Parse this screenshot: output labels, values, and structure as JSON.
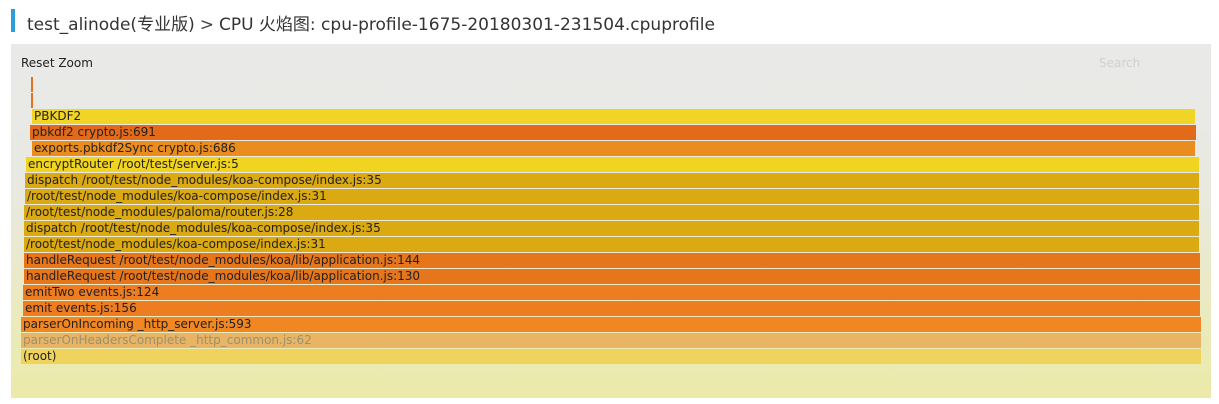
{
  "header": {
    "app_link": "test_alinode(专业版)",
    "separator": ">",
    "page_title": "CPU 火焰图: cpu-profile-1675-20180301-231504.cpuprofile"
  },
  "toolbar": {
    "reset_zoom_label": "Reset Zoom",
    "search_placeholder": "Search"
  },
  "colors": {
    "accent": "#2c9fd9"
  },
  "flame": {
    "frames": [
      {
        "label": "",
        "color": "#e8701e"
      },
      {
        "label": "",
        "color": "#e8701e"
      },
      {
        "label": "PBKDF2",
        "color": "#f1d526"
      },
      {
        "label": "pbkdf2 crypto.js:691",
        "color": "#e36a18"
      },
      {
        "label": "exports.pbkdf2Sync crypto.js:686",
        "color": "#eb8d1e"
      },
      {
        "label": "encryptRouter /root/test/server.js:5",
        "color": "#f1d41f"
      },
      {
        "label": "dispatch /root/test/node_modules/koa-compose/index.js:35",
        "color": "#dba911"
      },
      {
        "label": "/root/test/node_modules/koa-compose/index.js:31",
        "color": "#dba911"
      },
      {
        "label": "/root/test/node_modules/paloma/router.js:28",
        "color": "#dba911"
      },
      {
        "label": "dispatch /root/test/node_modules/koa-compose/index.js:35",
        "color": "#dba911"
      },
      {
        "label": "/root/test/node_modules/koa-compose/index.js:31",
        "color": "#dba911"
      },
      {
        "label": "handleRequest /root/test/node_modules/koa/lib/application.js:144",
        "color": "#e5761c"
      },
      {
        "label": "handleRequest /root/test/node_modules/koa/lib/application.js:130",
        "color": "#e5761c"
      },
      {
        "label": "emitTwo events.js:124",
        "color": "#ee7d21"
      },
      {
        "label": "emit events.js:156",
        "color": "#ee7d21"
      },
      {
        "label": "parserOnIncoming _http_server.js:593",
        "color": "#f08722"
      },
      {
        "label": "parserOnHeadersComplete _http_common.js:62",
        "color": "#e9b463"
      },
      {
        "label": "(root)",
        "color": "#efd35d"
      }
    ]
  }
}
